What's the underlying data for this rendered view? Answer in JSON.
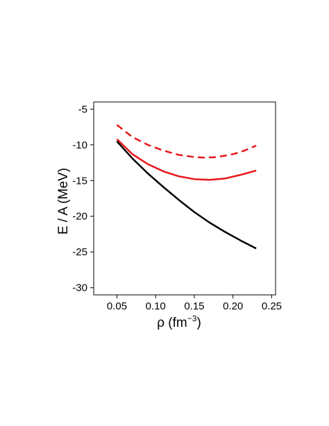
{
  "chart_data": {
    "type": "line",
    "title": "",
    "xlabel": "ρ (fm",
    "xlabel_sup": "−3",
    "xlabel_close": ")",
    "ylabel": "E / A (MeV)",
    "xlim": [
      0.02,
      0.255
    ],
    "ylim": [
      -31,
      -4
    ],
    "xticks": [
      0.05,
      0.1,
      0.15,
      0.2,
      0.25
    ],
    "xtick_labels": [
      "0.05",
      "0.10",
      "0.15",
      "0.20",
      "0.25"
    ],
    "yticks": [
      -5,
      -10,
      -15,
      -20,
      -25,
      -30
    ],
    "ytick_labels": [
      "-5",
      "-10",
      "-15",
      "-20",
      "-25",
      "-30"
    ],
    "grid": false,
    "series": [
      {
        "color": "#e8161b",
        "dash": true,
        "x": [
          0.05,
          0.07,
          0.09,
          0.11,
          0.13,
          0.15,
          0.165,
          0.18,
          0.2,
          0.215,
          0.23
        ],
        "y": [
          -7.2,
          -8.9,
          -10.0,
          -10.8,
          -11.4,
          -11.7,
          -11.8,
          -11.7,
          -11.3,
          -10.8,
          -10.1
        ]
      },
      {
        "color": "#e8161b",
        "dash": false,
        "x": [
          0.05,
          0.07,
          0.09,
          0.11,
          0.13,
          0.15,
          0.17,
          0.19,
          0.21,
          0.23
        ],
        "y": [
          -9.2,
          -11.3,
          -12.7,
          -13.7,
          -14.4,
          -14.8,
          -14.9,
          -14.7,
          -14.2,
          -13.6
        ]
      },
      {
        "color": "#000000",
        "dash": false,
        "x": [
          0.05,
          0.07,
          0.09,
          0.11,
          0.13,
          0.15,
          0.17,
          0.19,
          0.21,
          0.23
        ],
        "y": [
          -9.5,
          -11.9,
          -14.0,
          -15.9,
          -17.7,
          -19.4,
          -20.9,
          -22.2,
          -23.4,
          -24.5
        ]
      }
    ]
  }
}
